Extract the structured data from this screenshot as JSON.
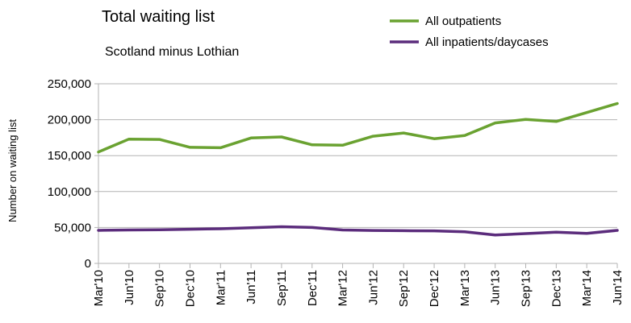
{
  "chart_data": {
    "type": "line",
    "title": "Total waiting list",
    "subtitle": "Scotland minus Lothian",
    "xlabel": "",
    "ylabel": "Number on waiting list",
    "ylim": [
      0,
      250000
    ],
    "yticks": [
      0,
      50000,
      100000,
      150000,
      200000,
      250000
    ],
    "ytick_labels": [
      "0",
      "50,000",
      "100,000",
      "150,000",
      "200,000",
      "250,000"
    ],
    "grid": true,
    "legend": "top-right",
    "categories": [
      "Mar'10",
      "Jun'10",
      "Sep'10",
      "Dec'10",
      "Mar'11",
      "Jun'11",
      "Sep'11",
      "Dec'11",
      "Mar'12",
      "Jun'12",
      "Sep'12",
      "Dec'12",
      "Mar'13",
      "Jun'13",
      "Sep'13",
      "Dec'13",
      "Mar'14",
      "Jun'14"
    ],
    "series": [
      {
        "name": "All outpatients",
        "color": "#6aa231",
        "values": [
          155000,
          173000,
          172500,
          161500,
          161000,
          174500,
          176000,
          165000,
          164500,
          177000,
          181500,
          173500,
          178000,
          195500,
          200500,
          197500,
          210000,
          222500
        ]
      },
      {
        "name": "All inpatients/daycases",
        "color": "#5b2c7c",
        "values": [
          46000,
          46500,
          46700,
          47500,
          48200,
          49500,
          51000,
          50000,
          46500,
          45800,
          45500,
          45300,
          44000,
          39500,
          41500,
          43500,
          41800,
          46000
        ]
      }
    ]
  }
}
